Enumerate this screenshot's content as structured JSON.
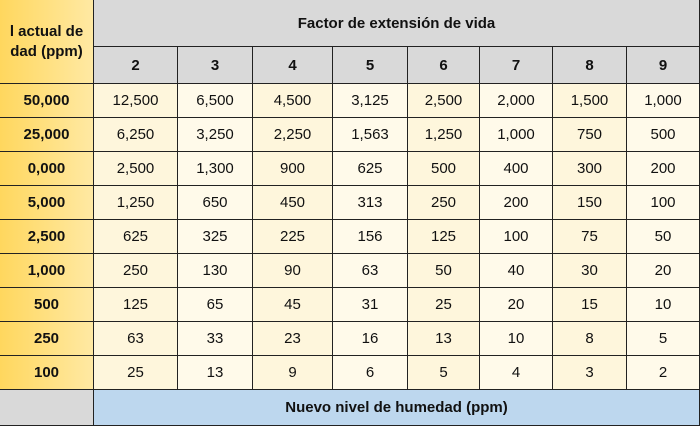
{
  "header": {
    "corner": [
      "l actual de",
      "dad (ppm)"
    ],
    "title": "Factor de extensión de vida",
    "factors": [
      "2",
      "3",
      "4",
      "5",
      "6",
      "7",
      "8",
      "9"
    ]
  },
  "rows": [
    {
      "label": "50,000",
      "values": [
        "12,500",
        "6,500",
        "4,500",
        "3,125",
        "2,500",
        "2,000",
        "1,500",
        "1,000"
      ]
    },
    {
      "label": "25,000",
      "values": [
        "6,250",
        "3,250",
        "2,250",
        "1,563",
        "1,250",
        "1,000",
        "750",
        "500"
      ]
    },
    {
      "label": "0,000",
      "values": [
        "2,500",
        "1,300",
        "900",
        "625",
        "500",
        "400",
        "300",
        "200"
      ]
    },
    {
      "label": "5,000",
      "values": [
        "1,250",
        "650",
        "450",
        "313",
        "250",
        "200",
        "150",
        "100"
      ]
    },
    {
      "label": "2,500",
      "values": [
        "625",
        "325",
        "225",
        "156",
        "125",
        "100",
        "75",
        "50"
      ]
    },
    {
      "label": "1,000",
      "values": [
        "250",
        "130",
        "90",
        "63",
        "50",
        "40",
        "30",
        "20"
      ]
    },
    {
      "label": "500",
      "values": [
        "125",
        "65",
        "45",
        "31",
        "25",
        "20",
        "15",
        "10"
      ]
    },
    {
      "label": "250",
      "values": [
        "63",
        "33",
        "23",
        "16",
        "13",
        "10",
        "8",
        "5"
      ]
    },
    {
      "label": "100",
      "values": [
        "25",
        "13",
        "9",
        "6",
        "5",
        "4",
        "3",
        "2"
      ]
    }
  ],
  "footer": {
    "title": "Nuevo nivel de humedad (ppm)"
  }
}
